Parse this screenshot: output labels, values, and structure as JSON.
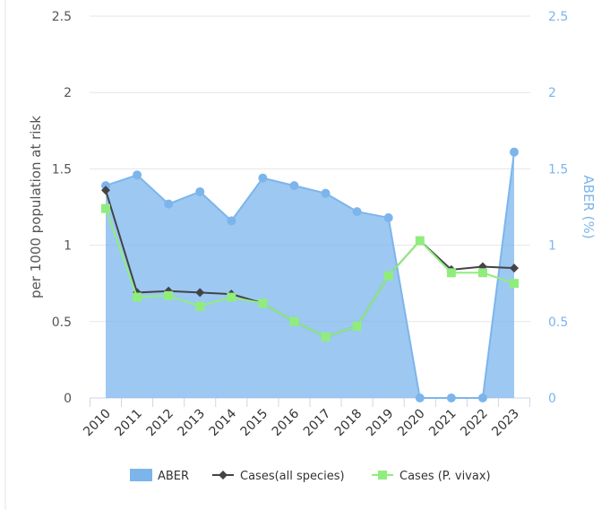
{
  "chart_data": {
    "type": "combo",
    "y_label": "per 1000 population at risk",
    "y2_label": "ABER (%)",
    "categories": [
      "2010",
      "2011",
      "2012",
      "2013",
      "2014",
      "2015",
      "2016",
      "2017",
      "2018",
      "2019",
      "2020",
      "2021",
      "2022",
      "2023"
    ],
    "ylim": [
      0,
      2.5
    ],
    "yticks": [
      0,
      0.5,
      1,
      1.5,
      2,
      2.5
    ],
    "y2lim": [
      0,
      2.5
    ],
    "y2ticks": [
      0,
      0.5,
      1,
      1.5,
      2,
      2.5
    ],
    "grid": true,
    "legend": "bottom",
    "series": [
      {
        "name": "ABER",
        "type": "area",
        "axis": "y2",
        "color": "#7cb5ec",
        "values": [
          1.39,
          1.46,
          1.27,
          1.35,
          1.16,
          1.44,
          1.39,
          1.34,
          1.22,
          1.18,
          0,
          0,
          0,
          1.61
        ]
      },
      {
        "name": "Cases(all species)",
        "type": "line",
        "marker": "diamond",
        "color": "#434348",
        "values": [
          1.36,
          0.69,
          0.7,
          0.69,
          0.68,
          0.62,
          0.5,
          0.4,
          0.47,
          0.8,
          1.03,
          0.84,
          0.86,
          0.85
        ]
      },
      {
        "name": "Cases (P. vivax)",
        "type": "line",
        "marker": "square",
        "color": "#90ed7d",
        "values": [
          1.24,
          0.66,
          0.67,
          0.6,
          0.66,
          0.62,
          0.5,
          0.4,
          0.47,
          0.8,
          1.03,
          0.82,
          0.82,
          0.75
        ]
      }
    ]
  }
}
